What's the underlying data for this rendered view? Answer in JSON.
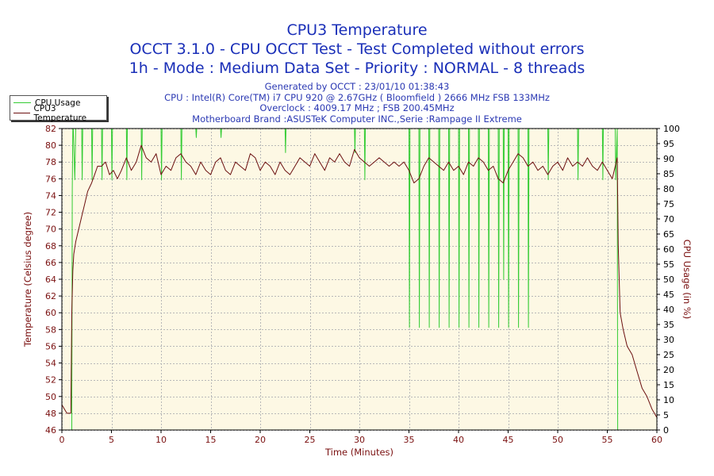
{
  "header": {
    "title": "CPU3 Temperature",
    "line2": "OCCT 3.1.0 - CPU OCCT Test - Test Completed without errors",
    "line3": "1h - Mode : Medium Data Set - Priority : NORMAL - 8 threads"
  },
  "info": {
    "generated": "Generated by OCCT : 23/01/10 01:38:43",
    "cpu": "CPU : Intel(R) Core(TM) i7 CPU 920 @ 2.67GHz ( Bloomfield ) 2666 MHz FSB 133MHz",
    "overclock": "Overclock : 4009.17 MHz ; FSB 200.45MHz",
    "motherboard": "Motherboard Brand :ASUSTeK Computer INC.,Serie :Rampage II Extreme"
  },
  "colors": {
    "usage": "#33cc33",
    "temperature": "#6b0f0f",
    "plot_bg": "#fdf8e4",
    "axis_text": "#7a1010",
    "title": "#1a2fb8"
  },
  "chart_data": {
    "type": "line",
    "xlabel": "Time (Minutes)",
    "ylabel_left": "Temperature (Celsius degree)",
    "ylabel_right": "CPU Usage (in %)",
    "xlim": [
      0,
      60
    ],
    "ylim_left": [
      46,
      82
    ],
    "ylim_right": [
      0,
      100
    ],
    "x_ticks": [
      "0",
      "5",
      "10",
      "15",
      "20",
      "25",
      "30",
      "35",
      "40",
      "45",
      "50",
      "55",
      "60"
    ],
    "y_ticks_left": [
      "46",
      "48",
      "50",
      "52",
      "54",
      "56",
      "58",
      "60",
      "62",
      "64",
      "66",
      "68",
      "70",
      "72",
      "74",
      "76",
      "78",
      "80",
      "82"
    ],
    "y_ticks_right": [
      "0",
      "5",
      "10",
      "15",
      "20",
      "25",
      "30",
      "35",
      "40",
      "45",
      "50",
      "55",
      "60",
      "65",
      "70",
      "75",
      "80",
      "85",
      "90",
      "95",
      "100"
    ],
    "grid": true,
    "legend": "top-left",
    "series": [
      {
        "name": "CPU Usage",
        "axis": "right",
        "x": [
          0,
          1.0,
          1.05,
          1.1,
          1.15,
          1.3,
          1.4,
          1.5,
          2,
          2.05,
          2.1,
          3,
          3.05,
          3.1,
          4,
          4.05,
          4.1,
          5,
          5.05,
          5.1,
          6.5,
          6.55,
          6.6,
          8,
          8.05,
          8.1,
          10,
          10.05,
          10.1,
          12,
          12.05,
          12.1,
          13.5,
          13.55,
          13.6,
          16,
          16.05,
          16.1,
          22.5,
          22.55,
          22.6,
          29.5,
          29.55,
          29.6,
          30.5,
          30.55,
          30.6,
          35.0,
          35.05,
          35.1,
          36.0,
          36.05,
          36.1,
          37.0,
          37.05,
          37.1,
          38.0,
          38.05,
          38.1,
          39.0,
          39.05,
          39.1,
          40.0,
          40.05,
          40.1,
          41.0,
          41.05,
          41.1,
          42.0,
          42.05,
          42.1,
          43.0,
          43.05,
          43.1,
          44.0,
          44.05,
          44.1,
          44.5,
          44.55,
          44.6,
          45.0,
          45.05,
          45.1,
          46.0,
          46.05,
          46.1,
          47.0,
          47.05,
          47.1,
          49.0,
          49.05,
          49.1,
          52.0,
          52.05,
          52.1,
          54.5,
          54.55,
          54.6,
          55.8,
          55.85,
          56.0,
          56.05,
          56.5,
          60
        ],
        "values": [
          0,
          0,
          80,
          100,
          100,
          83,
          100,
          100,
          100,
          83,
          100,
          100,
          83,
          100,
          100,
          83,
          100,
          100,
          83,
          100,
          100,
          83,
          100,
          100,
          83,
          100,
          100,
          83,
          100,
          100,
          83,
          100,
          100,
          97,
          100,
          100,
          97,
          100,
          100,
          92,
          100,
          100,
          92,
          100,
          100,
          83,
          100,
          100,
          34,
          100,
          100,
          34,
          100,
          100,
          34,
          100,
          100,
          34,
          100,
          100,
          34,
          100,
          100,
          34,
          100,
          100,
          34,
          100,
          100,
          34,
          100,
          100,
          34,
          100,
          100,
          34,
          100,
          100,
          50,
          100,
          100,
          34,
          100,
          100,
          34,
          100,
          100,
          34,
          100,
          100,
          83,
          100,
          100,
          83,
          100,
          100,
          83,
          100,
          100,
          83,
          100,
          0,
          0,
          0
        ]
      },
      {
        "name": "CPU3 Temperature",
        "axis": "left",
        "x": [
          0,
          0.5,
          0.9,
          1.0,
          1.1,
          1.2,
          1.4,
          1.6,
          1.8,
          2.0,
          2.3,
          2.6,
          3.0,
          3.3,
          3.6,
          4.0,
          4.4,
          4.8,
          5.2,
          5.6,
          6.0,
          6.5,
          7.0,
          7.5,
          8.0,
          8.5,
          9.0,
          9.5,
          10.0,
          10.5,
          11.0,
          11.5,
          12.0,
          12.5,
          13.0,
          13.5,
          14.0,
          14.5,
          15.0,
          15.5,
          16.0,
          16.5,
          17.0,
          17.5,
          18.0,
          18.5,
          19.0,
          19.5,
          20.0,
          20.5,
          21.0,
          21.5,
          22.0,
          22.5,
          23.0,
          23.5,
          24.0,
          24.5,
          25.0,
          25.5,
          26.0,
          26.5,
          27.0,
          27.5,
          28.0,
          28.5,
          29.0,
          29.5,
          30.0,
          30.5,
          31.0,
          31.5,
          32.0,
          32.5,
          33.0,
          33.5,
          34.0,
          34.5,
          35.0,
          35.5,
          36.0,
          36.5,
          37.0,
          37.5,
          38.0,
          38.5,
          39.0,
          39.5,
          40.0,
          40.5,
          41.0,
          41.5,
          42.0,
          42.5,
          43.0,
          43.5,
          44.0,
          44.5,
          45.0,
          45.5,
          46.0,
          46.5,
          47.0,
          47.5,
          48.0,
          48.5,
          49.0,
          49.5,
          50.0,
          50.5,
          51.0,
          51.5,
          52.0,
          52.5,
          53.0,
          53.5,
          54.0,
          54.5,
          55.0,
          55.5,
          55.8,
          56.0,
          56.1,
          56.3,
          56.6,
          57.0,
          57.5,
          58.0,
          58.5,
          59.0,
          59.5,
          60.0
        ],
        "values": [
          49,
          48,
          48,
          60,
          65,
          67,
          68.5,
          69.5,
          70.5,
          71.5,
          73,
          74.5,
          75.5,
          76.5,
          77.5,
          77.5,
          78,
          76.5,
          77,
          76,
          77,
          78.5,
          77,
          78,
          80,
          78.5,
          78,
          79,
          76.5,
          77.5,
          77,
          78.5,
          79,
          78,
          77.5,
          76.5,
          78,
          77,
          76.5,
          78,
          78.5,
          77,
          76.5,
          78,
          77.5,
          77,
          79,
          78.5,
          77,
          78,
          77.5,
          76.5,
          78,
          77,
          76.5,
          77.5,
          78.5,
          78,
          77.5,
          79,
          78,
          77,
          78.5,
          78,
          79,
          78,
          77.5,
          79.5,
          78.5,
          78,
          77.5,
          78,
          78.5,
          78,
          77.5,
          78,
          77.5,
          78,
          77,
          75.5,
          76,
          77.5,
          78.5,
          78,
          77.5,
          77,
          78,
          77,
          77.5,
          76.5,
          78,
          77.5,
          78.5,
          78,
          77,
          77.5,
          76,
          75.5,
          77,
          78,
          79,
          78.5,
          77.5,
          78,
          77,
          77.5,
          76.5,
          77.5,
          78,
          77,
          78.5,
          77.5,
          78,
          77.5,
          78.5,
          77.5,
          77,
          78,
          77,
          76,
          77.5,
          78.5,
          68,
          60,
          58,
          56,
          55,
          53,
          51,
          50,
          48.5,
          47.5
        ]
      }
    ]
  }
}
